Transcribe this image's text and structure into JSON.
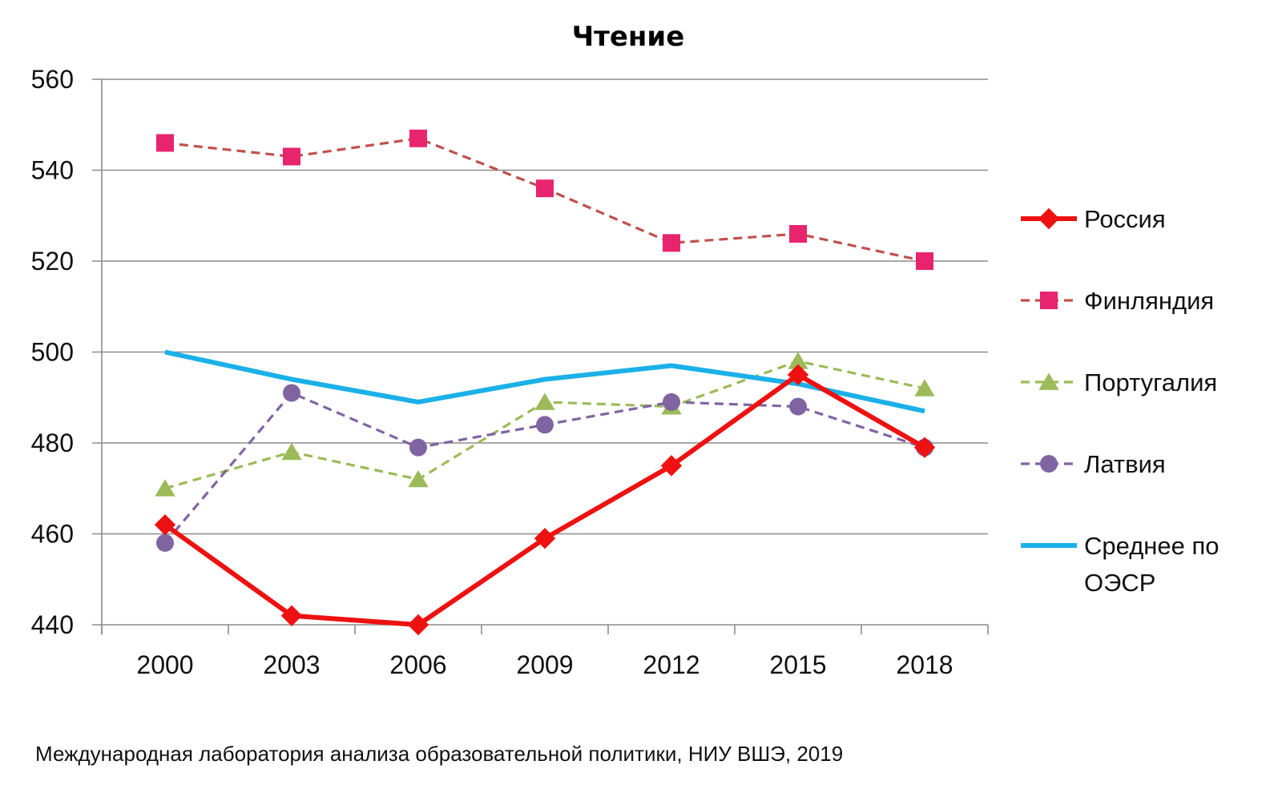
{
  "chart_data": {
    "type": "line",
    "title": "Чтение",
    "xlabel": "",
    "ylabel": "",
    "categories": [
      "2000",
      "2003",
      "2006",
      "2009",
      "2012",
      "2015",
      "2018"
    ],
    "yticks": [
      "440",
      "460",
      "480",
      "500",
      "520",
      "540",
      "560"
    ],
    "ylim": [
      440,
      560
    ],
    "grid": "horizontal",
    "legend": "right",
    "series": [
      {
        "name": "Финляндия",
        "values": [
          546,
          543,
          547,
          536,
          524,
          526,
          520
        ],
        "color": "#c0504d",
        "marker_color": "#e8246e",
        "marker": "square",
        "dash": "dashed"
      },
      {
        "name": "Португалия",
        "values": [
          470,
          478,
          472,
          489,
          488,
          498,
          492
        ],
        "color": "#9bbb59",
        "marker_color": "#9bbb59",
        "marker": "triangle",
        "dash": "dashed"
      },
      {
        "name": "Латвия",
        "values": [
          458,
          491,
          479,
          484,
          489,
          488,
          479
        ],
        "color": "#8064a2",
        "marker_color": "#8064a2",
        "marker": "circle",
        "dash": "dashed"
      },
      {
        "name": "Среднее по ОЭСР",
        "values": [
          500,
          494,
          489,
          494,
          497,
          493,
          487
        ],
        "color": "#1bb0e8",
        "marker_color": "#1bb0e8",
        "marker": "none",
        "dash": "solid"
      },
      {
        "name": "Россия",
        "values": [
          462,
          442,
          440,
          459,
          475,
          495,
          479
        ],
        "color": "#ee1111",
        "marker_color": "#ee1111",
        "marker": "diamond",
        "dash": "solid"
      }
    ],
    "legend_order": [
      "Россия",
      "Финляндия",
      "Португалия",
      "Латвия",
      "Среднее по ОЭСР"
    ],
    "legend_lines": {
      "Среднее по ОЭСР": [
        "Среднее по",
        "ОЭСР"
      ]
    }
  },
  "source_note": "Международная лаборатория анализа образовательной политики, НИУ ВШЭ, 2019"
}
